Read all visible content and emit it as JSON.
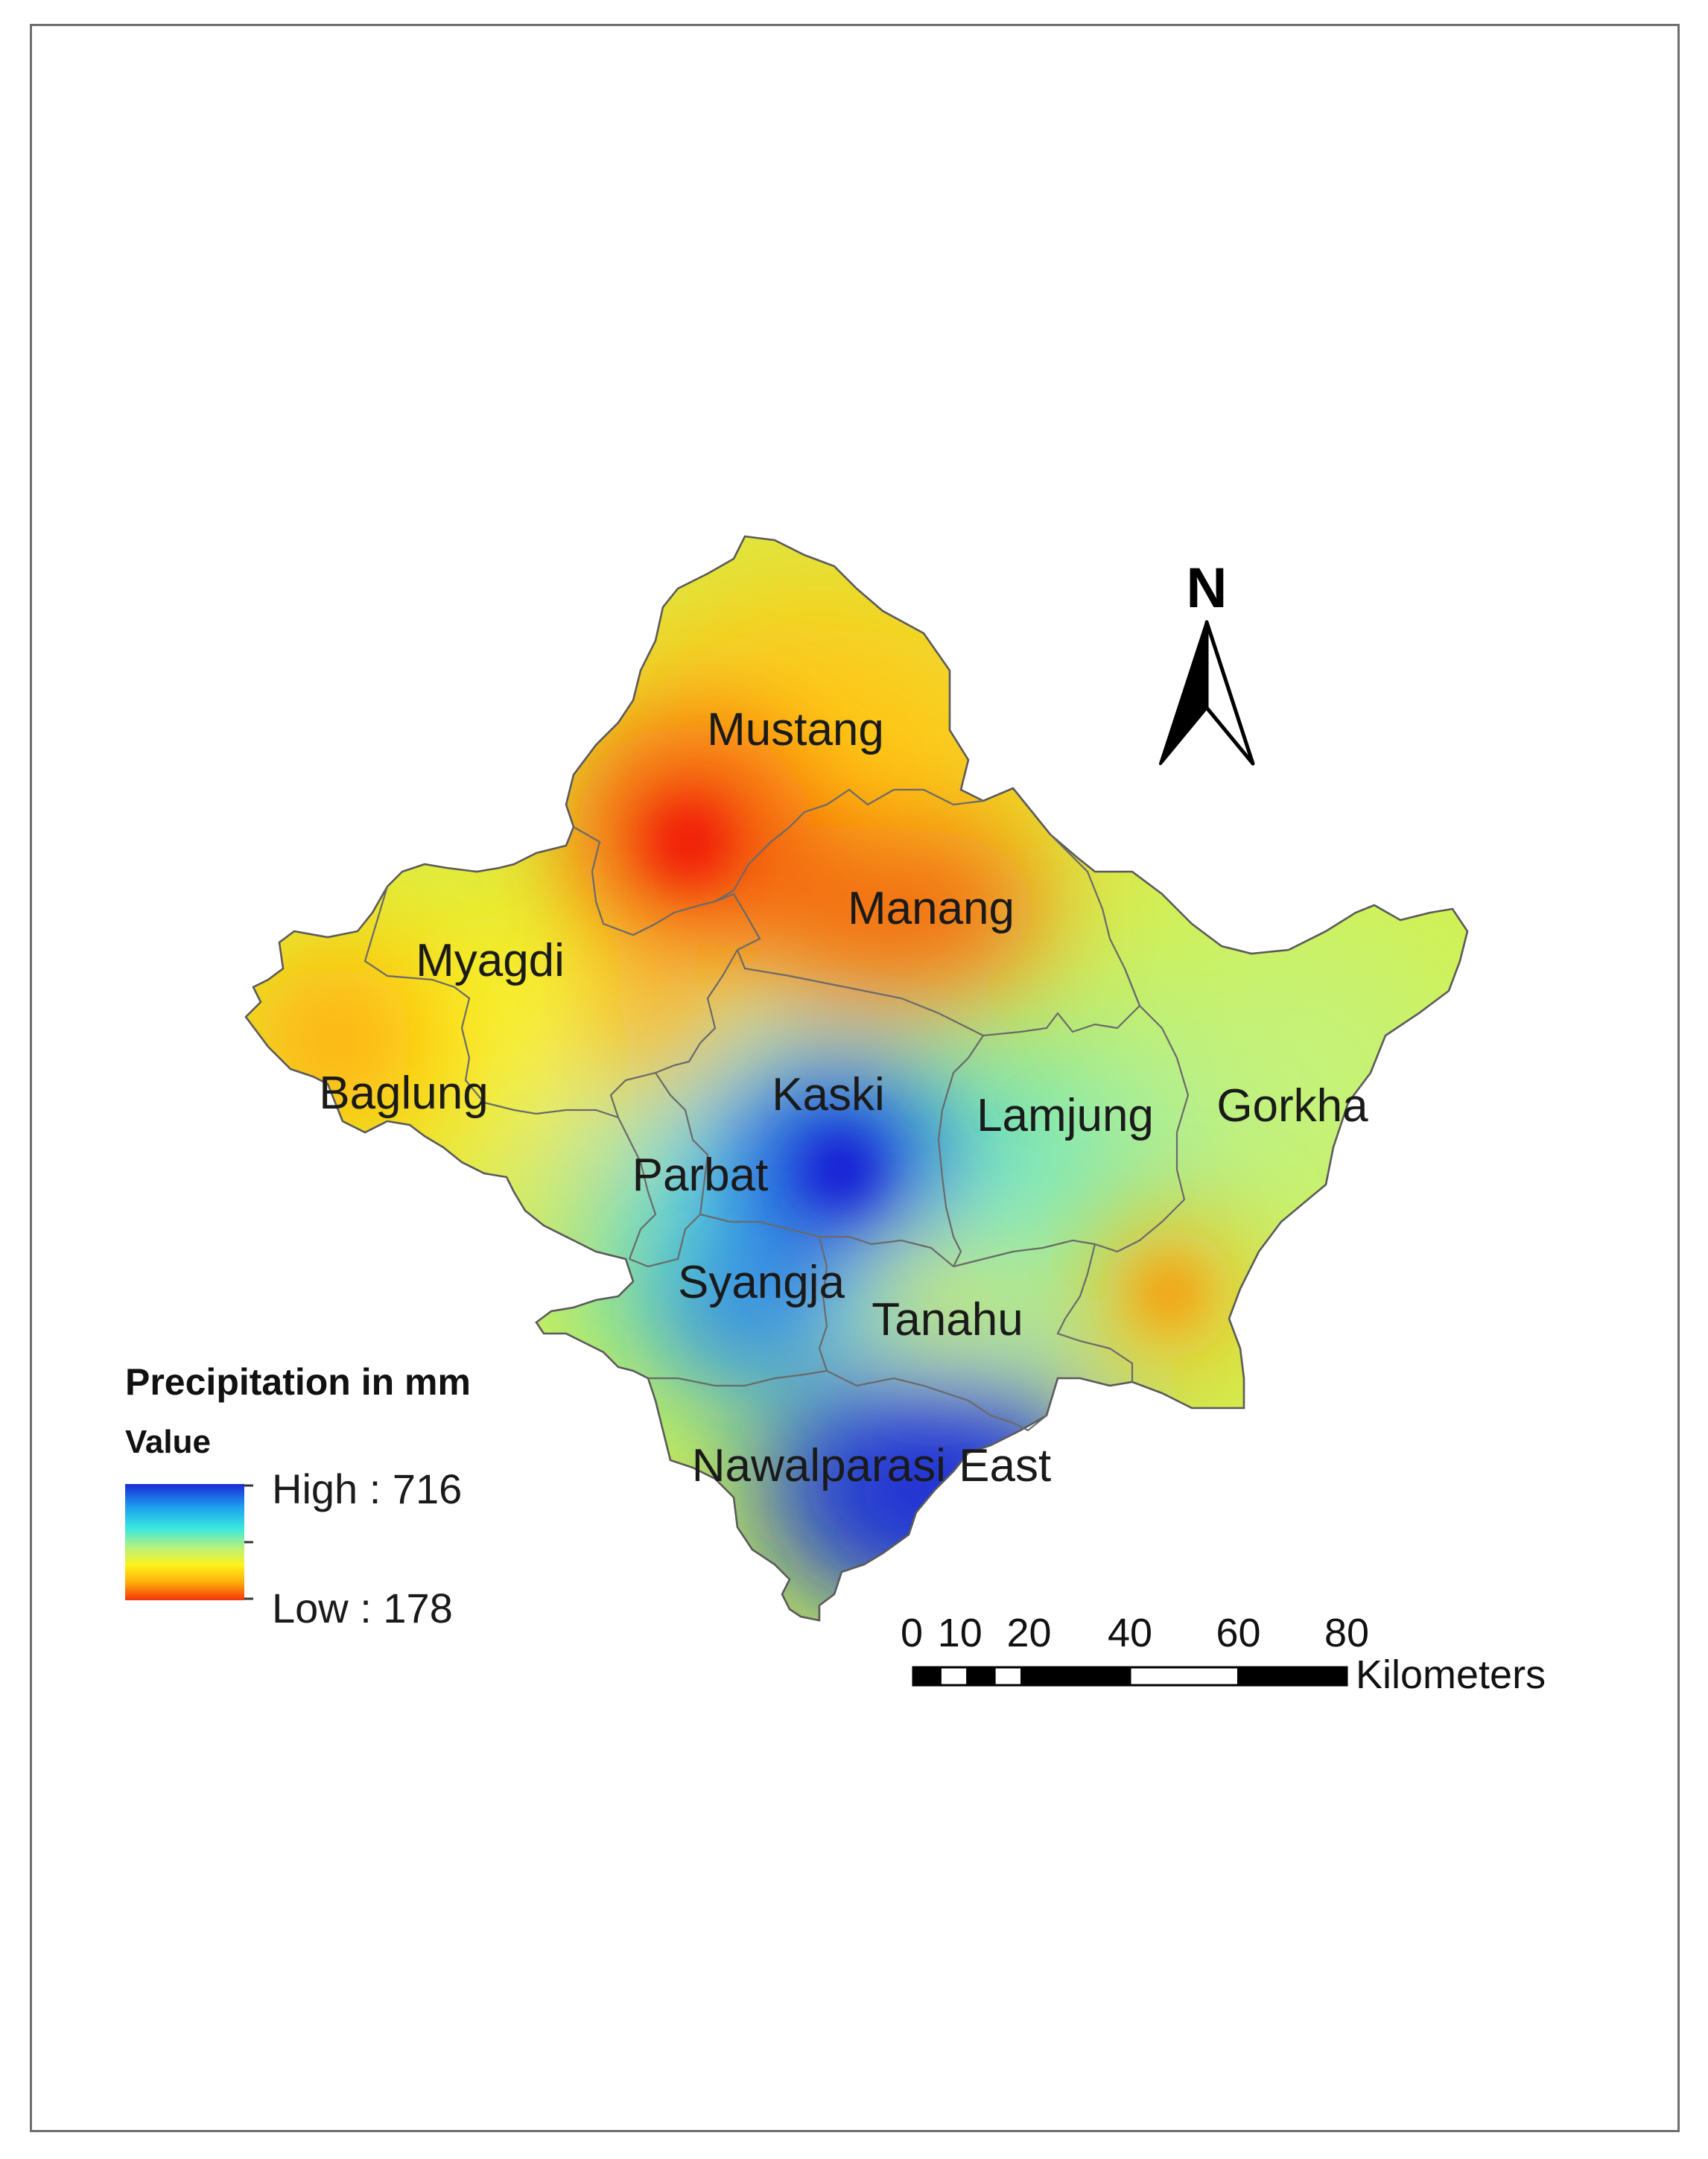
{
  "legend": {
    "title": "Precipitation in mm",
    "subtitle": "Value",
    "high_label": "High : 716",
    "low_label": "Low : 178",
    "high_value": 716,
    "low_value": 178,
    "colors": [
      "#1a2bd6",
      "#1ea0ee",
      "#39e8e0",
      "#b8f27a",
      "#fff21c",
      "#ffb10a",
      "#f2350a"
    ]
  },
  "districts": [
    {
      "name": "Mustang"
    },
    {
      "name": "Manang"
    },
    {
      "name": "Myagdi"
    },
    {
      "name": "Baglung"
    },
    {
      "name": "Kaski"
    },
    {
      "name": "Lamjung"
    },
    {
      "name": "Gorkha"
    },
    {
      "name": "Parbat"
    },
    {
      "name": "Syangja"
    },
    {
      "name": "Tanahu"
    },
    {
      "name": "Nawalparasi East"
    }
  ],
  "north_arrow": {
    "label": "N",
    "icon": "north-arrow-icon"
  },
  "scale_bar": {
    "ticks": [
      "0",
      "10",
      "20",
      "40",
      "60",
      "80"
    ],
    "unit": "Kilometers"
  }
}
